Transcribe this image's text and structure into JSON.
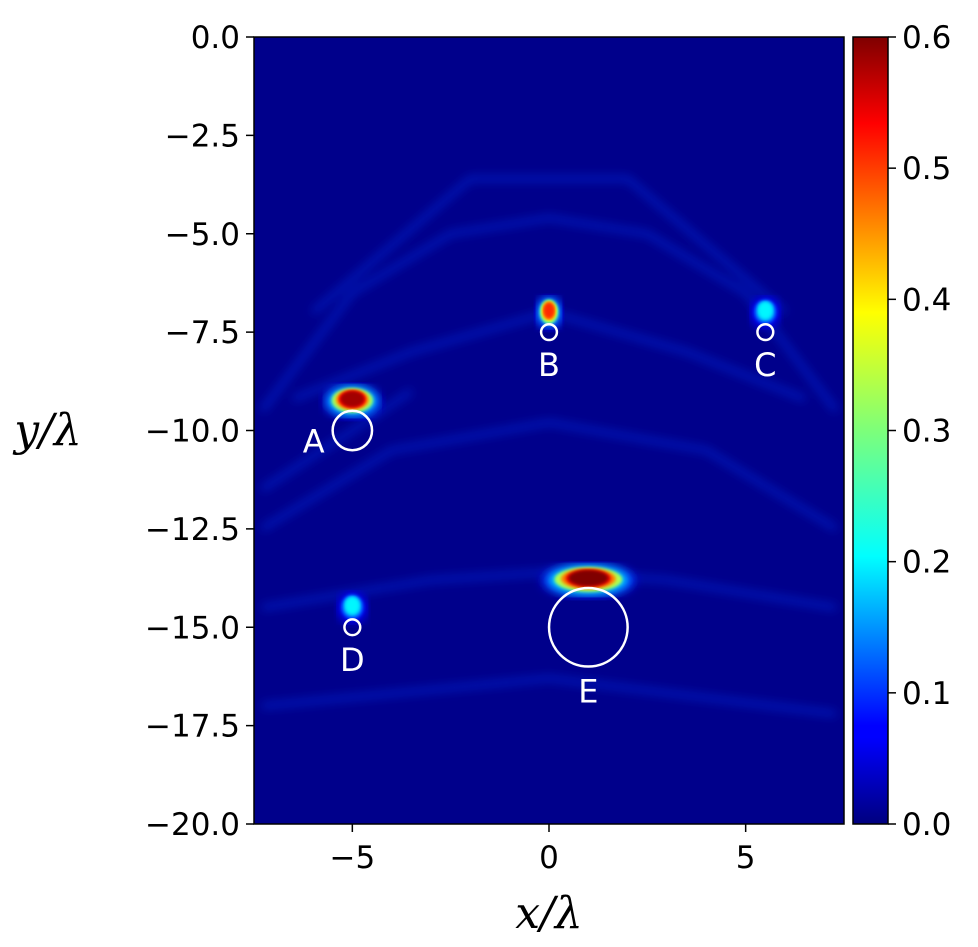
{
  "chart_data": {
    "type": "heatmap",
    "title": "",
    "xlabel": "x/λ",
    "ylabel": "y/λ",
    "xlim": [
      -7.5,
      7.5
    ],
    "ylim": [
      -20,
      0
    ],
    "xticks": [
      -5,
      0,
      5
    ],
    "xtick_labels": [
      "−5",
      "0",
      "5"
    ],
    "yticks": [
      0,
      -2.5,
      -5,
      -7.5,
      -10,
      -12.5,
      -15,
      -17.5,
      -20
    ],
    "ytick_labels": [
      "0.0",
      "−2.5",
      "−5.0",
      "−7.5",
      "−10.0",
      "−12.5",
      "−15.0",
      "−17.5",
      "−20.0"
    ],
    "colormap": "jet",
    "colorbar": {
      "range": [
        0,
        0.6
      ],
      "ticks": [
        0.0,
        0.1,
        0.2,
        0.3,
        0.4,
        0.5,
        0.6
      ],
      "tick_labels": [
        "0.0",
        "0.1",
        "0.2",
        "0.3",
        "0.4",
        "0.5",
        "0.6"
      ]
    },
    "scatterers": [
      {
        "label": "A",
        "x": -5.0,
        "y": -10.0,
        "radius": 0.5
      },
      {
        "label": "B",
        "x": 0.0,
        "y": -7.5,
        "radius": 0.2
      },
      {
        "label": "C",
        "x": 5.5,
        "y": -7.5,
        "radius": 0.2
      },
      {
        "label": "D",
        "x": -5.0,
        "y": -15.0,
        "radius": 0.2
      },
      {
        "label": "E",
        "x": 1.0,
        "y": -15.0,
        "radius": 1.0
      }
    ],
    "hotspots": [
      {
        "x": -5.0,
        "y": -9.2,
        "intensity": 0.58,
        "width": 0.55
      },
      {
        "x": 0.0,
        "y": -6.95,
        "intensity": 0.5,
        "width": 0.25
      },
      {
        "x": 5.5,
        "y": -6.95,
        "intensity": 0.22,
        "width": 0.3
      },
      {
        "x": -5.0,
        "y": -14.45,
        "intensity": 0.22,
        "width": 0.3
      },
      {
        "x": 1.0,
        "y": -13.75,
        "intensity": 0.6,
        "width": 0.9
      }
    ]
  }
}
